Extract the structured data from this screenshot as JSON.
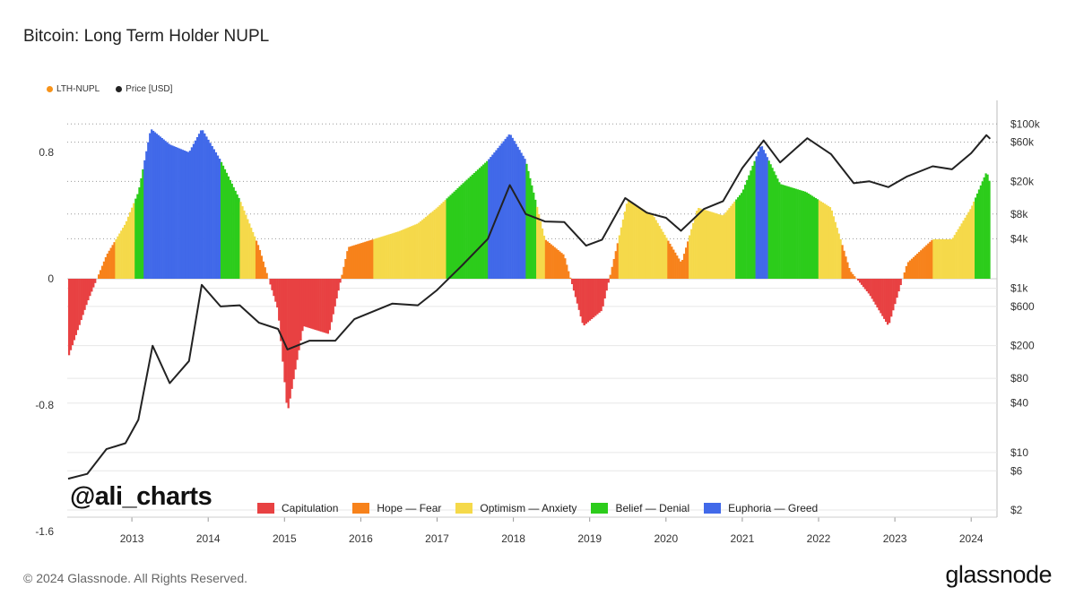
{
  "chart_data": {
    "type": "area",
    "title": "Bitcoin: Long Term Holder NUPL",
    "series": [
      {
        "name": "LTH-NUPL",
        "color": "#f7931a",
        "points": [
          [
            "2012-03-01",
            -0.5
          ],
          [
            "2012-06-01",
            -0.15
          ],
          [
            "2012-09-01",
            0.15
          ],
          [
            "2012-12-01",
            0.35
          ],
          [
            "2013-02-01",
            0.55
          ],
          [
            "2013-04-01",
            0.95
          ],
          [
            "2013-07-01",
            0.85
          ],
          [
            "2013-10-01",
            0.8
          ],
          [
            "2013-12-01",
            0.95
          ],
          [
            "2014-03-01",
            0.75
          ],
          [
            "2014-06-01",
            0.5
          ],
          [
            "2014-09-01",
            0.2
          ],
          [
            "2014-12-01",
            -0.2
          ],
          [
            "2015-01-15",
            -0.85
          ],
          [
            "2015-04-01",
            -0.3
          ],
          [
            "2015-08-01",
            -0.35
          ],
          [
            "2015-11-01",
            0.2
          ],
          [
            "2016-03-01",
            0.25
          ],
          [
            "2016-07-01",
            0.3
          ],
          [
            "2016-10-01",
            0.35
          ],
          [
            "2017-01-01",
            0.45
          ],
          [
            "2017-05-01",
            0.6
          ],
          [
            "2017-09-01",
            0.75
          ],
          [
            "2017-12-15",
            0.92
          ],
          [
            "2018-03-01",
            0.75
          ],
          [
            "2018-06-01",
            0.25
          ],
          [
            "2018-09-01",
            0.15
          ],
          [
            "2018-12-01",
            -0.3
          ],
          [
            "2019-03-01",
            -0.2
          ],
          [
            "2019-05-01",
            0.15
          ],
          [
            "2019-07-01",
            0.5
          ],
          [
            "2019-11-01",
            0.4
          ],
          [
            "2020-03-15",
            0.1
          ],
          [
            "2020-06-01",
            0.45
          ],
          [
            "2020-10-01",
            0.4
          ],
          [
            "2021-01-01",
            0.55
          ],
          [
            "2021-04-01",
            0.85
          ],
          [
            "2021-07-01",
            0.6
          ],
          [
            "2021-11-01",
            0.55
          ],
          [
            "2022-03-01",
            0.45
          ],
          [
            "2022-06-01",
            0.05
          ],
          [
            "2022-09-01",
            -0.1
          ],
          [
            "2022-12-01",
            -0.3
          ],
          [
            "2023-03-01",
            0.1
          ],
          [
            "2023-07-01",
            0.25
          ],
          [
            "2023-10-01",
            0.25
          ],
          [
            "2024-01-01",
            0.45
          ],
          [
            "2024-03-15",
            0.68
          ],
          [
            "2024-04-01",
            0.6
          ]
        ]
      },
      {
        "name": "Price [USD]",
        "color": "#222222",
        "points": [
          [
            "2012-03-01",
            4.8
          ],
          [
            "2012-06-01",
            5.5
          ],
          [
            "2012-09-01",
            11
          ],
          [
            "2012-12-01",
            13
          ],
          [
            "2013-02-01",
            25
          ],
          [
            "2013-04-10",
            200
          ],
          [
            "2013-07-01",
            70
          ],
          [
            "2013-10-01",
            130
          ],
          [
            "2013-12-01",
            1100
          ],
          [
            "2014-03-01",
            600
          ],
          [
            "2014-06-01",
            620
          ],
          [
            "2014-09-01",
            380
          ],
          [
            "2014-12-01",
            320
          ],
          [
            "2015-01-15",
            180
          ],
          [
            "2015-05-01",
            230
          ],
          [
            "2015-09-01",
            230
          ],
          [
            "2015-12-01",
            420
          ],
          [
            "2016-06-01",
            650
          ],
          [
            "2016-10-01",
            620
          ],
          [
            "2017-01-01",
            950
          ],
          [
            "2017-05-01",
            1900
          ],
          [
            "2017-09-01",
            4000
          ],
          [
            "2017-12-15",
            18000
          ],
          [
            "2018-03-01",
            8000
          ],
          [
            "2018-06-01",
            6500
          ],
          [
            "2018-09-01",
            6400
          ],
          [
            "2018-12-15",
            3300
          ],
          [
            "2019-03-01",
            3900
          ],
          [
            "2019-06-20",
            12500
          ],
          [
            "2019-10-01",
            8300
          ],
          [
            "2020-01-01",
            7200
          ],
          [
            "2020-03-13",
            5000
          ],
          [
            "2020-07-01",
            9200
          ],
          [
            "2020-10-01",
            11500
          ],
          [
            "2021-01-01",
            29000
          ],
          [
            "2021-04-13",
            63000
          ],
          [
            "2021-07-01",
            34000
          ],
          [
            "2021-11-08",
            67000
          ],
          [
            "2022-03-01",
            43000
          ],
          [
            "2022-06-18",
            19000
          ],
          [
            "2022-09-01",
            20000
          ],
          [
            "2022-12-01",
            17000
          ],
          [
            "2023-03-01",
            23000
          ],
          [
            "2023-07-01",
            30500
          ],
          [
            "2023-10-01",
            28000
          ],
          [
            "2024-01-01",
            44000
          ],
          [
            "2024-03-14",
            73000
          ],
          [
            "2024-04-01",
            66000
          ]
        ]
      }
    ],
    "zones": [
      {
        "name": "Capitulation",
        "color": "#e84142"
      },
      {
        "name": "Hope — Fear",
        "color": "#f7821b"
      },
      {
        "name": "Optimism — Anxiety",
        "color": "#f5d94a"
      },
      {
        "name": "Belief — Denial",
        "color": "#2ccc1b"
      },
      {
        "name": "Euphoria — Greed",
        "color": "#4169e9"
      }
    ],
    "x_ticks": [
      "2013",
      "2014",
      "2015",
      "2016",
      "2017",
      "2018",
      "2019",
      "2020",
      "2021",
      "2022",
      "2023",
      "2024"
    ],
    "y_left_ticks": [
      "0.8",
      "0",
      "-0.8",
      "-1.6"
    ],
    "y_left_range": [
      -1.6,
      1.0
    ],
    "y_right_ticks": [
      "$100k",
      "$60k",
      "$20k",
      "$8k",
      "$4k",
      "$1k",
      "$600",
      "$200",
      "$80",
      "$40",
      "$10",
      "$6",
      "$2"
    ],
    "y_right_scale": "log",
    "y_right_range": [
      2,
      120000
    ],
    "legend_position": "top-left",
    "grid": true
  },
  "labels": {
    "title": "Bitcoin: Long Term Holder NUPL",
    "legend_nupl": "LTH-NUPL",
    "legend_price": "Price [USD]",
    "watermark": "@ali_charts",
    "footer": "© 2024 Glassnode. All Rights Reserved.",
    "brand": "glassnode"
  }
}
